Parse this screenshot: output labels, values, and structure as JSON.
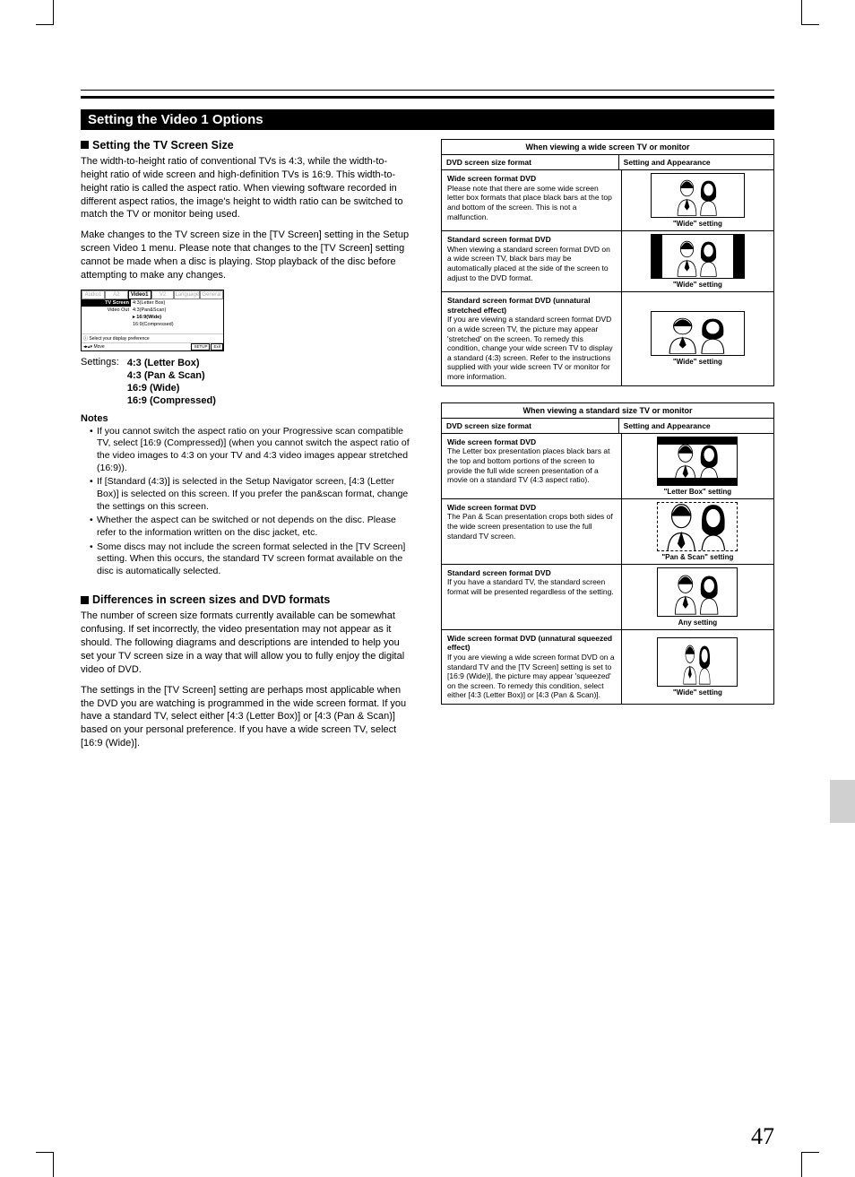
{
  "page_number": "47",
  "heading": "Setting the Video 1 Options",
  "section1": {
    "title": "Setting the TV Screen Size",
    "para1": "The width-to-height ratio of conventional TVs is 4:3, while the width-to-height ratio of wide screen and high-definition TVs is 16:9. This width-to-height ratio is called the aspect ratio. When viewing software recorded in different aspect ratios, the image's height to width ratio can be switched to match the TV or monitor being used.",
    "para2": "Make changes to the TV screen size in the [TV Screen] setting in the Setup screen Video 1 menu. Please note that changes to the [TV Screen] setting cannot be made when a disc is playing. Stop playback of the disc before attempting to make any changes."
  },
  "osd": {
    "tabs": [
      "Audio1",
      "A2",
      "Video1",
      "V2",
      "Language",
      "General"
    ],
    "active_tab_index": 2,
    "left_items": [
      "TV Screen",
      "Video Out"
    ],
    "selected_left_index": 0,
    "right_items": [
      "4:3(Letter Box)",
      "4:3(Pan&Scan)",
      "16:9(Wide)",
      "16:9(Compressed)"
    ],
    "selected_right_index": 2,
    "hint": "Select your display preference",
    "move": "Move",
    "setup": "SETUP",
    "exit": "Exit"
  },
  "settings": {
    "label": "Settings:",
    "options": [
      "4:3 (Letter Box)",
      "4:3 (Pan & Scan)",
      "16:9 (Wide)",
      "16:9 (Compressed)"
    ]
  },
  "notes": {
    "heading": "Notes",
    "items": [
      "If you cannot switch the aspect ratio on your Progressive scan compatible TV, select [16:9 (Compressed)] (when you cannot switch the aspect ratio of the video images to 4:3 on your TV and 4:3 video images appear stretched (16:9)).",
      "If [Standard (4:3)] is selected in the Setup Navigator screen, [4:3 (Letter Box)] is selected on this screen. If you prefer the pan&scan format, change the settings on this screen.",
      "Whether the aspect can be switched or not depends on the disc. Please refer to the information written on the disc jacket, etc.",
      "Some discs may not include the screen format selected in the [TV Screen] setting. When this occurs, the standard TV screen format available on the disc is automatically selected."
    ]
  },
  "section2": {
    "title": "Differences in screen sizes and DVD formats",
    "para1": "The number of screen size formats currently available can be somewhat confusing. If set incorrectly, the video presentation may not appear as it should. The following diagrams and descriptions are intended to help you set your TV screen size in a way that will allow you to fully enjoy the digital video of DVD.",
    "para2": "The settings in the [TV Screen] setting are perhaps most applicable when the DVD you are watching  is programmed in the wide screen format. If you have a standard TV, select either [4:3 (Letter Box)] or [4:3 (Pan & Scan)] based on your personal preference. If you have a wide screen TV, select [16:9 (Wide)]."
  },
  "table_a": {
    "title": "When viewing a wide screen TV or monitor",
    "col1": "DVD screen size format",
    "col2": "Setting and Appearance",
    "rows": [
      {
        "title": "Wide screen format DVD",
        "body": "Please note that there are some wide screen letter box formats that place black bars at the top and bottom of the screen. This is not a malfunction.",
        "caption": "\"Wide\" setting",
        "style": "wide"
      },
      {
        "title": "Standard screen format DVD",
        "body": "When viewing a standard screen format DVD on a wide screen TV,  black bars may be automatically placed at the side of the screen to adjust to the DVD format.",
        "caption": "\"Wide\" setting",
        "style": "wide pillar"
      },
      {
        "title": "Standard screen format DVD (unnatural stretched effect)",
        "body": "If you are viewing a standard screen format DVD on a wide screen TV, the picture may appear 'stretched' on the screen. To remedy this condition, change your wide screen TV to display a standard (4:3) screen. Refer to the instructions supplied with your wide screen TV or monitor for more information.",
        "caption": "\"Wide\" setting",
        "style": "wide stretch"
      }
    ]
  },
  "table_b": {
    "title": "When viewing a standard size TV or monitor",
    "col1": "DVD screen size format",
    "col2": "Setting and Appearance",
    "rows": [
      {
        "title": "Wide screen format DVD",
        "body": "The Letter box presentation places black bars at the top and bottom portions of the screen to provide the full wide screen presentation of a movie on a standard TV (4:3 aspect ratio).",
        "caption": "\"Letter Box\" setting",
        "style": "lb"
      },
      {
        "title": "Wide screen format DVD",
        "body": "The Pan & Scan presentation crops both sides of the wide screen presentation to use the full standard TV screen.",
        "caption": "\"Pan & Scan\" setting",
        "style": "dashed ps-crop"
      },
      {
        "title": "Standard screen format DVD",
        "body": "If you have a standard TV, the standard screen format will be presented regardless of the setting.",
        "caption": "Any setting",
        "style": ""
      },
      {
        "title": "Wide screen format DVD (unnatural squeezed effect)",
        "body": "If you are viewing a wide screen format DVD on a standard TV and the [TV Screen] setting is set to [16:9 (Wide)], the picture may appear 'squeezed' on the screen. To remedy this condition, select either [4:3 (Letter Box)] or [4:3 (Pan & Scan)].",
        "caption": "\"Wide\" setting",
        "style": "squeeze"
      }
    ]
  }
}
